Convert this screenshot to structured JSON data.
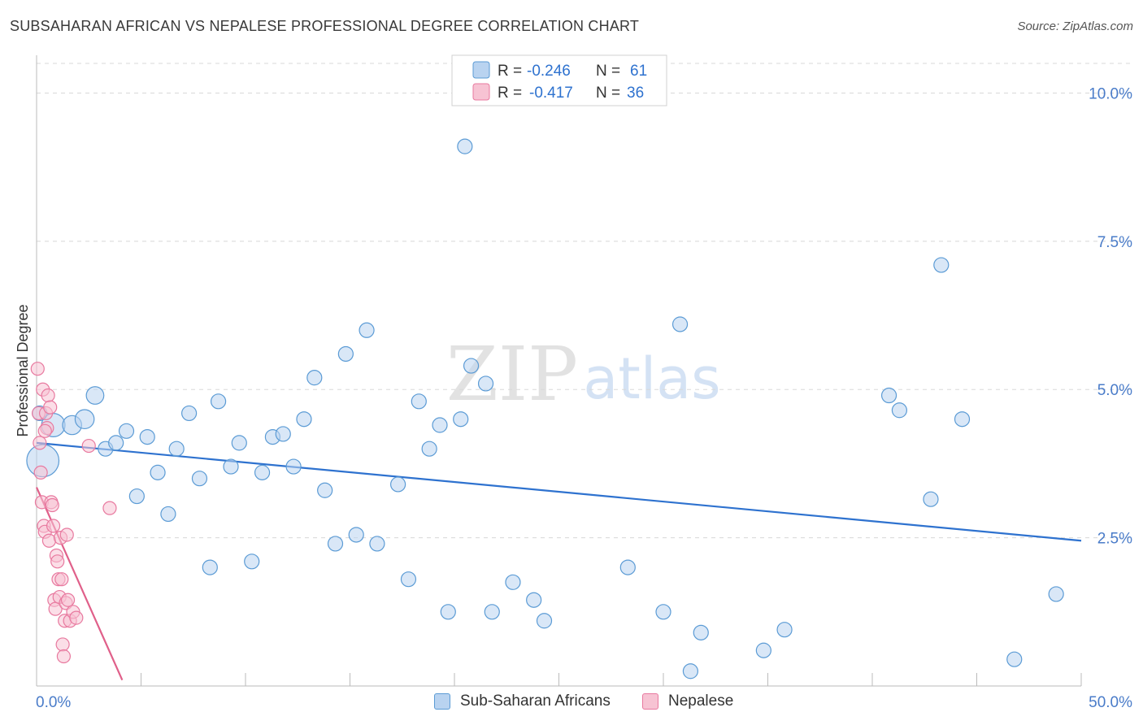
{
  "title": "SUBSAHARAN AFRICAN VS NEPALESE PROFESSIONAL DEGREE CORRELATION CHART",
  "source": "Source: ZipAtlas.com",
  "watermark": {
    "zip": "ZIP",
    "atlas": "atlas"
  },
  "colors": {
    "blue": "#5b9bd5",
    "blue_fill": "#b9d3f0",
    "blue_line": "#2e72cf",
    "pink": "#e8799f",
    "pink_fill": "#f7c3d3",
    "pink_line": "#e0608a",
    "tick_label": "#4a7cc9",
    "grid": "#d8d8d8",
    "axis": "#bbbbbb"
  },
  "chart_data": {
    "type": "scatter",
    "title": "SUBSAHARAN AFRICAN VS NEPALESE PROFESSIONAL DEGREE CORRELATION CHART",
    "xlabel": "",
    "ylabel": "Professional Degree",
    "xlim": [
      0,
      50
    ],
    "ylim": [
      0,
      10.5
    ],
    "x_tick_labels": [
      {
        "value": 0,
        "label": "0.0%"
      },
      {
        "value": 50,
        "label": "50.0%"
      }
    ],
    "y_tick_labels": [
      {
        "value": 2.5,
        "label": "2.5%"
      },
      {
        "value": 5.0,
        "label": "5.0%"
      },
      {
        "value": 7.5,
        "label": "7.5%"
      },
      {
        "value": 10.0,
        "label": "10.0%"
      }
    ],
    "legend": [
      {
        "series": "Sub-Saharan Africans",
        "r_label": "R =",
        "r_value": "-0.246",
        "n_label": "N =",
        "n_value": "61"
      },
      {
        "series": "Nepalese",
        "r_label": "R =",
        "r_value": "-0.417",
        "n_label": "N =",
        "n_value": "36"
      }
    ],
    "series": [
      {
        "name": "Sub-Saharan Africans",
        "color": "#5b9bd5",
        "points": [
          [
            0.3,
            3.8,
            2.2
          ],
          [
            0.8,
            4.4,
            1.6
          ],
          [
            1.7,
            4.4,
            1.3
          ],
          [
            2.3,
            4.5,
            1.3
          ],
          [
            2.8,
            4.9,
            1.2
          ],
          [
            3.3,
            4.0,
            1
          ],
          [
            3.8,
            4.1,
            1
          ],
          [
            4.3,
            4.3,
            1
          ],
          [
            4.8,
            3.2,
            1
          ],
          [
            5.3,
            4.2,
            1
          ],
          [
            5.8,
            3.6,
            1
          ],
          [
            6.3,
            2.9,
            1
          ],
          [
            6.7,
            4.0,
            1
          ],
          [
            7.3,
            4.6,
            1
          ],
          [
            7.8,
            3.5,
            1
          ],
          [
            8.3,
            2.0,
            1
          ],
          [
            8.7,
            4.8,
            1
          ],
          [
            9.3,
            3.7,
            1
          ],
          [
            9.7,
            4.1,
            1
          ],
          [
            10.3,
            2.1,
            1
          ],
          [
            10.8,
            3.6,
            1
          ],
          [
            11.3,
            4.2,
            1
          ],
          [
            11.8,
            4.25,
            1
          ],
          [
            12.3,
            3.7,
            1
          ],
          [
            12.8,
            4.5,
            1
          ],
          [
            13.3,
            5.2,
            1
          ],
          [
            13.8,
            3.3,
            1
          ],
          [
            14.3,
            2.4,
            1
          ],
          [
            14.8,
            5.6,
            1
          ],
          [
            15.3,
            2.55,
            1
          ],
          [
            15.8,
            6.0,
            1
          ],
          [
            16.3,
            2.4,
            1
          ],
          [
            17.3,
            3.4,
            1
          ],
          [
            17.8,
            1.8,
            1
          ],
          [
            18.3,
            4.8,
            1
          ],
          [
            18.8,
            4.0,
            1
          ],
          [
            19.3,
            4.4,
            1
          ],
          [
            19.7,
            1.25,
            1
          ],
          [
            20.3,
            4.5,
            1
          ],
          [
            20.5,
            9.1,
            1
          ],
          [
            20.8,
            5.4,
            1
          ],
          [
            21.5,
            5.1,
            1
          ],
          [
            21.8,
            1.25,
            1
          ],
          [
            22.8,
            1.75,
            1
          ],
          [
            23.8,
            1.45,
            1
          ],
          [
            24.3,
            1.1,
            1
          ],
          [
            28.3,
            2.0,
            1
          ],
          [
            30.0,
            1.25,
            1
          ],
          [
            30.8,
            6.1,
            1
          ],
          [
            31.3,
            0.25,
            1
          ],
          [
            31.8,
            0.9,
            1
          ],
          [
            34.8,
            0.6,
            1
          ],
          [
            35.8,
            0.95,
            1
          ],
          [
            40.8,
            4.9,
            1
          ],
          [
            41.3,
            4.65,
            1
          ],
          [
            42.8,
            3.15,
            1
          ],
          [
            43.3,
            7.1,
            1
          ],
          [
            44.3,
            4.5,
            1
          ],
          [
            46.8,
            0.45,
            1
          ],
          [
            48.8,
            1.55,
            1
          ],
          [
            0.15,
            4.6,
            1
          ]
        ]
      },
      {
        "name": "Nepalese",
        "color": "#e8799f",
        "points": [
          [
            0.05,
            5.35,
            1
          ],
          [
            0.1,
            4.6,
            1
          ],
          [
            0.15,
            4.1,
            1
          ],
          [
            0.2,
            3.6,
            1
          ],
          [
            0.25,
            3.1,
            1
          ],
          [
            0.3,
            5.0,
            1
          ],
          [
            0.35,
            2.7,
            1
          ],
          [
            0.4,
            2.6,
            1
          ],
          [
            0.45,
            4.6,
            1
          ],
          [
            0.5,
            4.35,
            1
          ],
          [
            0.55,
            4.9,
            1
          ],
          [
            0.6,
            2.45,
            1
          ],
          [
            0.65,
            4.7,
            1
          ],
          [
            0.7,
            3.1,
            1
          ],
          [
            0.75,
            3.05,
            1
          ],
          [
            0.8,
            2.7,
            1
          ],
          [
            0.85,
            1.45,
            1
          ],
          [
            0.9,
            1.3,
            1
          ],
          [
            0.95,
            2.2,
            1
          ],
          [
            1.0,
            2.1,
            1
          ],
          [
            1.05,
            1.8,
            1
          ],
          [
            1.1,
            1.5,
            1
          ],
          [
            1.15,
            2.5,
            1
          ],
          [
            1.2,
            1.8,
            1
          ],
          [
            1.25,
            0.7,
            1
          ],
          [
            1.3,
            0.5,
            1
          ],
          [
            1.35,
            1.1,
            1
          ],
          [
            1.4,
            1.4,
            1
          ],
          [
            1.45,
            2.55,
            1
          ],
          [
            1.5,
            1.45,
            1
          ],
          [
            1.6,
            1.1,
            1
          ],
          [
            1.75,
            1.25,
            1
          ],
          [
            1.9,
            1.15,
            1
          ],
          [
            2.5,
            4.05,
            1
          ],
          [
            3.5,
            3.0,
            1
          ],
          [
            0.4,
            4.3,
            1
          ]
        ]
      }
    ],
    "trend_lines": [
      {
        "series": "Sub-Saharan Africans",
        "x": [
          0.0,
          50.0
        ],
        "y": [
          4.1,
          2.45
        ]
      },
      {
        "series": "Nepalese",
        "x": [
          0.0,
          4.1
        ],
        "y": [
          3.35,
          0.1
        ]
      }
    ]
  }
}
